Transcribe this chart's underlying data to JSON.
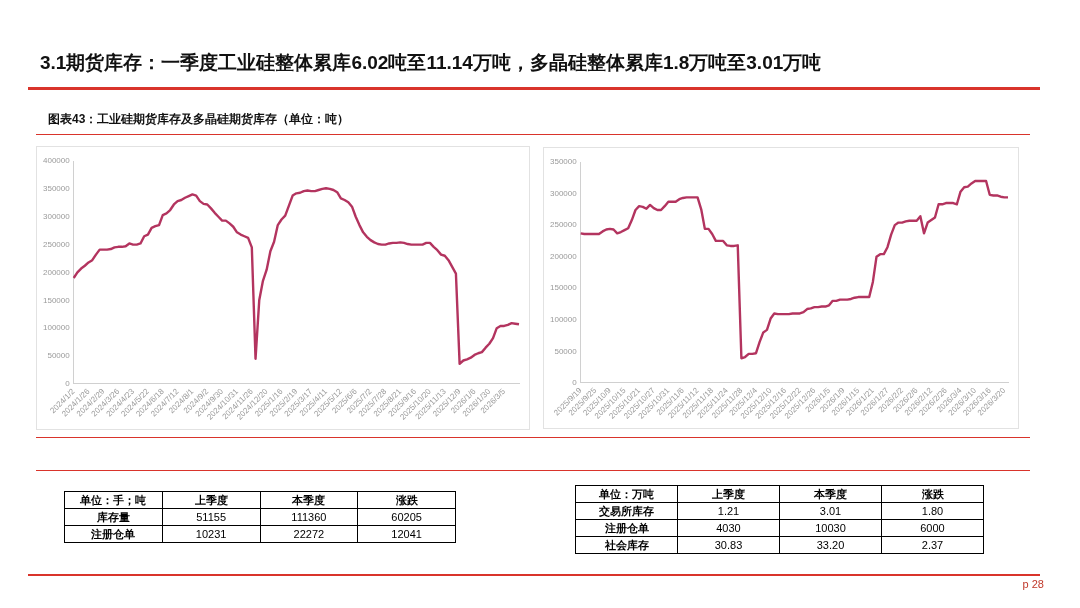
{
  "chart_data": [
    {
      "type": "line",
      "title": "3.1期货库存：一季度工业硅整体累库6.02吨至11.14万吨，多晶硅整体累库1.8万吨至3.01万吨",
      "subtitle": "图表43：工业硅期货库存及多晶硅期货库存（单位：吨）",
      "annotations": [
        "p 28"
      ],
      "categories": [
        "2024/1/2",
        null,
        null,
        null,
        "2024/1/26",
        null,
        null,
        null,
        "2024/2/29",
        null,
        null,
        null,
        "2024/3/26",
        null,
        null,
        null,
        "2024/4/23",
        null,
        null,
        null,
        "2024/5/22",
        null,
        null,
        null,
        "2024/6/18",
        null,
        null,
        null,
        "2024/7/12",
        null,
        null,
        null,
        "2024/8/1",
        null,
        null,
        null,
        "2024/9/2",
        null,
        null,
        null,
        "2024/9/30",
        null,
        null,
        null,
        "2024/10/31",
        null,
        null,
        null,
        "2024/11/26",
        null,
        null,
        null,
        "2024/12/20",
        null,
        null,
        null,
        "2025/1/16",
        null,
        null,
        null,
        "2025/2/19",
        null,
        null,
        null,
        "2025/3/17",
        null,
        null,
        null,
        "2025/4/11",
        null,
        null,
        null,
        "2025/5/12",
        null,
        null,
        null,
        "2025/6/6",
        null,
        null,
        null,
        "2025/7/2",
        null,
        null,
        null,
        "2025/7/28",
        null,
        null,
        null,
        "2025/8/21",
        null,
        null,
        null,
        "2025/9/16",
        null,
        null,
        null,
        "2025/10/20",
        null,
        null,
        null,
        "2025/11/13",
        null,
        null,
        null,
        "2025/12/9",
        null,
        null,
        null,
        "2026/1/6",
        null,
        null,
        null,
        "2026/1/30",
        null,
        null,
        null,
        "2026/3/5",
        null,
        null,
        null,
        null
      ],
      "series": [
        {
          "color": "#b3345f",
          "values": [
            190000,
            200000,
            207000,
            212000,
            218000,
            222000,
            232000,
            241000,
            241000,
            241000,
            242000,
            245000,
            246000,
            246000,
            247000,
            252000,
            250000,
            250000,
            252000,
            265000,
            268000,
            280000,
            283000,
            285000,
            303000,
            306000,
            312000,
            322000,
            328000,
            330000,
            334000,
            337000,
            340000,
            338000,
            328000,
            323000,
            322000,
            315000,
            307000,
            300000,
            293000,
            293000,
            288000,
            282000,
            272000,
            268000,
            265000,
            262000,
            245000,
            45000,
            150000,
            185000,
            205000,
            238000,
            255000,
            285000,
            295000,
            302000,
            320000,
            338000,
            342000,
            343000,
            346000,
            347000,
            346000,
            346000,
            348000,
            350000,
            351000,
            350000,
            348000,
            344000,
            333000,
            330000,
            326000,
            318000,
            300000,
            285000,
            272000,
            264000,
            258000,
            254000,
            251000,
            250000,
            250000,
            252000,
            253000,
            253000,
            254000,
            253000,
            251000,
            250000,
            250000,
            250000,
            250000,
            253000,
            253000,
            246000,
            240000,
            232000,
            230000,
            222000,
            210000,
            198000,
            36000,
            42000,
            44000,
            47000,
            52000,
            55000,
            57000,
            65000,
            72000,
            82000,
            100000,
            104000,
            104000,
            106000,
            109000,
            108000,
            107000
          ]
        }
      ],
      "ylim": [
        0,
        400000
      ],
      "yticks": [
        0,
        50000,
        100000,
        150000,
        200000,
        250000,
        300000,
        350000,
        400000
      ],
      "marker": "none",
      "line_style": "solid"
    },
    {
      "type": "line",
      "categories": [
        "2025/9/19",
        null,
        null,
        null,
        "2025/9/25",
        null,
        null,
        null,
        "2025/10/9",
        null,
        null,
        null,
        "2025/10/15",
        null,
        null,
        null,
        "2025/10/21",
        null,
        null,
        null,
        "2025/10/27",
        null,
        null,
        null,
        "2025/10/31",
        null,
        null,
        null,
        "2025/11/6",
        null,
        null,
        null,
        "2025/11/12",
        null,
        null,
        null,
        "2025/11/18",
        null,
        null,
        null,
        "2025/11/24",
        null,
        null,
        null,
        "2025/11/28",
        null,
        null,
        null,
        "2025/12/4",
        null,
        null,
        null,
        "2025/12/10",
        null,
        null,
        null,
        "2025/12/16",
        null,
        null,
        null,
        "2025/12/22",
        null,
        null,
        null,
        "2025/12/26",
        null,
        null,
        null,
        "2026/1/5",
        null,
        null,
        null,
        "2026/1/9",
        null,
        null,
        null,
        "2026/1/15",
        null,
        null,
        null,
        "2026/1/21",
        null,
        null,
        null,
        "2026/1/27",
        null,
        null,
        null,
        "2026/2/2",
        null,
        null,
        null,
        "2026/2/6",
        null,
        null,
        null,
        "2026/2/12",
        null,
        null,
        null,
        "2026/2/26",
        null,
        null,
        null,
        "2026/3/4",
        null,
        null,
        null,
        "2026/3/10",
        null,
        null,
        null,
        "2026/3/16",
        null,
        null,
        null,
        "2026/3/20",
        null
      ],
      "series": [
        {
          "color": "#b3345f",
          "values": [
            237000,
            236000,
            236000,
            236000,
            236000,
            236000,
            240000,
            243000,
            244000,
            243000,
            237000,
            239000,
            242000,
            245000,
            258000,
            274000,
            280000,
            279000,
            276000,
            282000,
            277000,
            274000,
            274000,
            280000,
            287000,
            287000,
            287000,
            291000,
            293000,
            294000,
            294000,
            294000,
            294000,
            275000,
            244000,
            244000,
            236000,
            225000,
            225000,
            225000,
            218000,
            217000,
            217000,
            218000,
            39000,
            41000,
            46000,
            46000,
            47000,
            65000,
            80000,
            84000,
            102000,
            110000,
            109000,
            109000,
            109000,
            109000,
            110000,
            110000,
            110000,
            112000,
            117000,
            118000,
            120000,
            120000,
            121000,
            121000,
            123000,
            130000,
            130000,
            132000,
            132000,
            132000,
            133000,
            135000,
            136000,
            136000,
            136000,
            136000,
            160000,
            200000,
            204000,
            204000,
            215000,
            235000,
            250000,
            254000,
            254000,
            256000,
            257000,
            257000,
            257000,
            264000,
            237000,
            254000,
            258000,
            262000,
            283000,
            283000,
            285000,
            285000,
            285000,
            283000,
            303000,
            310000,
            311000,
            316000,
            320000,
            320000,
            320000,
            320000,
            298000,
            297000,
            297000,
            295000,
            294000,
            294000
          ]
        }
      ],
      "ylim": [
        0,
        350000
      ],
      "yticks": [
        0,
        50000,
        100000,
        150000,
        200000,
        250000,
        300000,
        350000
      ],
      "marker": "none",
      "line_style": "solid"
    },
    {
      "type": "other",
      "categories": [
        "单位：手；吨",
        "上季度",
        "本季度",
        "涨跌"
      ],
      "y_categories": [
        "库存量",
        "注册仓单"
      ],
      "cell_labels": [
        [
          "51155",
          "111360",
          "60205"
        ],
        [
          "10231",
          "22272",
          "12041"
        ]
      ]
    },
    {
      "type": "other",
      "categories": [
        "单位：万吨",
        "上季度",
        "本季度",
        "涨跌"
      ],
      "y_categories": [
        "交易所库存",
        "注册仓单",
        "社会库存"
      ],
      "cell_labels": [
        [
          "1.21",
          "3.01",
          "1.80"
        ],
        [
          "4030",
          "10030",
          "6000"
        ],
        [
          "30.83",
          "33.20",
          "2.37"
        ]
      ]
    }
  ]
}
